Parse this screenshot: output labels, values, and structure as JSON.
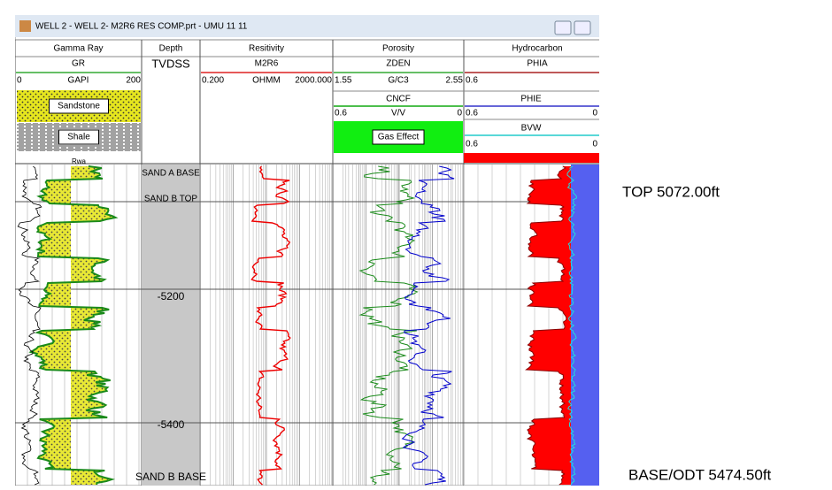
{
  "window": {
    "title": "WELL 2 - WELL 2- M2R6 RES COMP.prt - UMU 11 11"
  },
  "tracks": [
    {
      "name": "Gamma Ray",
      "curve": "GR",
      "unit": "GAPI",
      "left": "0",
      "right": "200"
    },
    {
      "name": "Depth",
      "curve": "TVDSS"
    },
    {
      "name": "Resitivity",
      "curve": "M2R6",
      "unit": "OHMM",
      "left": "0.200",
      "right": "2000.000"
    },
    {
      "name": "Porosity",
      "curve": "ZDEN",
      "unit": "G/C3",
      "left": "1.55",
      "right": "2.55",
      "curve2": "CNCF",
      "unit2": "V/V",
      "left2": "0.6",
      "right2": "0"
    },
    {
      "name": "Hydrocarbon",
      "curve": "PHIA",
      "left": "0.6",
      "right": "0",
      "curve2": "PHIE",
      "left2": "0.6",
      "right2": "0",
      "curve3": "BVW",
      "left3": "0.6",
      "right3": "0"
    }
  ],
  "lithology": [
    "Sandstone",
    "Shale",
    "Rwa"
  ],
  "gas_effect": "Gas Effect",
  "depth_markers": [
    "SAND A BASE",
    "SAND B TOP",
    "-5200",
    "-5400",
    "SAND B BASE"
  ],
  "annotations": {
    "top": "TOP 5072.00ft",
    "base": "BASE/ODT 5474.50ft"
  }
}
